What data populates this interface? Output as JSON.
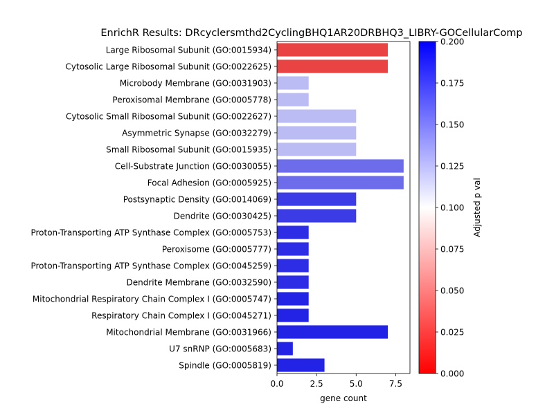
{
  "chart_data": {
    "type": "bar",
    "orientation": "horizontal",
    "title": "EnrichR Results: DRcyclersmthd2CyclingBHQ1AR20DRBHQ3_LIBRY-GOCellularComp",
    "xlabel": "gene count",
    "ylabel": "",
    "xlim": [
      0,
      8.4
    ],
    "xticks": [
      0.0,
      2.5,
      5.0,
      7.5
    ],
    "xtick_labels": [
      "0.0",
      "2.5",
      "5.0",
      "7.5"
    ],
    "categories": [
      "Large Ribosomal Subunit (GO:0015934)",
      "Cytosolic Large Ribosomal Subunit (GO:0022625)",
      "Microbody Membrane (GO:0031903)",
      "Peroxisomal Membrane (GO:0005778)",
      "Cytosolic Small Ribosomal Subunit (GO:0022627)",
      "Asymmetric Synapse (GO:0032279)",
      "Small Ribosomal Subunit (GO:0015935)",
      "Cell-Substrate Junction (GO:0030055)",
      "Focal Adhesion (GO:0005925)",
      "Postsynaptic Density (GO:0014069)",
      "Dendrite (GO:0030425)",
      "Proton-Transporting ATP Synthase Complex (GO:0005753)",
      "Peroxisome (GO:0005777)",
      "Proton-Transporting ATP Synthase Complex (GO:0045259)",
      "Dendrite Membrane (GO:0032590)",
      "Mitochondrial Respiratory Chain Complex I (GO:0005747)",
      "Respiratory Chain Complex I (GO:0045271)",
      "Mitochondrial Membrane (GO:0031966)",
      "U7 snRNP (GO:0005683)",
      "Spindle (GO:0005819)"
    ],
    "values": [
      7,
      7,
      2,
      2,
      5,
      5,
      5,
      8,
      8,
      5,
      5,
      2,
      2,
      2,
      2,
      2,
      2,
      7,
      1,
      3
    ],
    "colors": [
      "#ea4343",
      "#ea4343",
      "#bcbcf5",
      "#bcbcf5",
      "#bcbcf5",
      "#bcbcf5",
      "#bcbcf5",
      "#6d6dec",
      "#6d6dec",
      "#3c3ce7",
      "#3c3ce7",
      "#2d2de6",
      "#2d2de6",
      "#2d2de6",
      "#2d2de6",
      "#2323e5",
      "#2323e5",
      "#2323e5",
      "#2323e5",
      "#2323e5"
    ],
    "colorbar": {
      "label": "Adjusted p val",
      "range": [
        0.0,
        0.2
      ],
      "ticks": [
        0.0,
        0.025,
        0.05,
        0.075,
        0.1,
        0.125,
        0.15,
        0.175,
        0.2
      ],
      "tick_labels": [
        "0.000",
        "0.025",
        "0.050",
        "0.075",
        "0.100",
        "0.125",
        "0.150",
        "0.175",
        "0.200"
      ],
      "colormap": [
        "#ff0000",
        "#ffffff",
        "#0000ff"
      ]
    },
    "grid": false,
    "legend": "none"
  }
}
